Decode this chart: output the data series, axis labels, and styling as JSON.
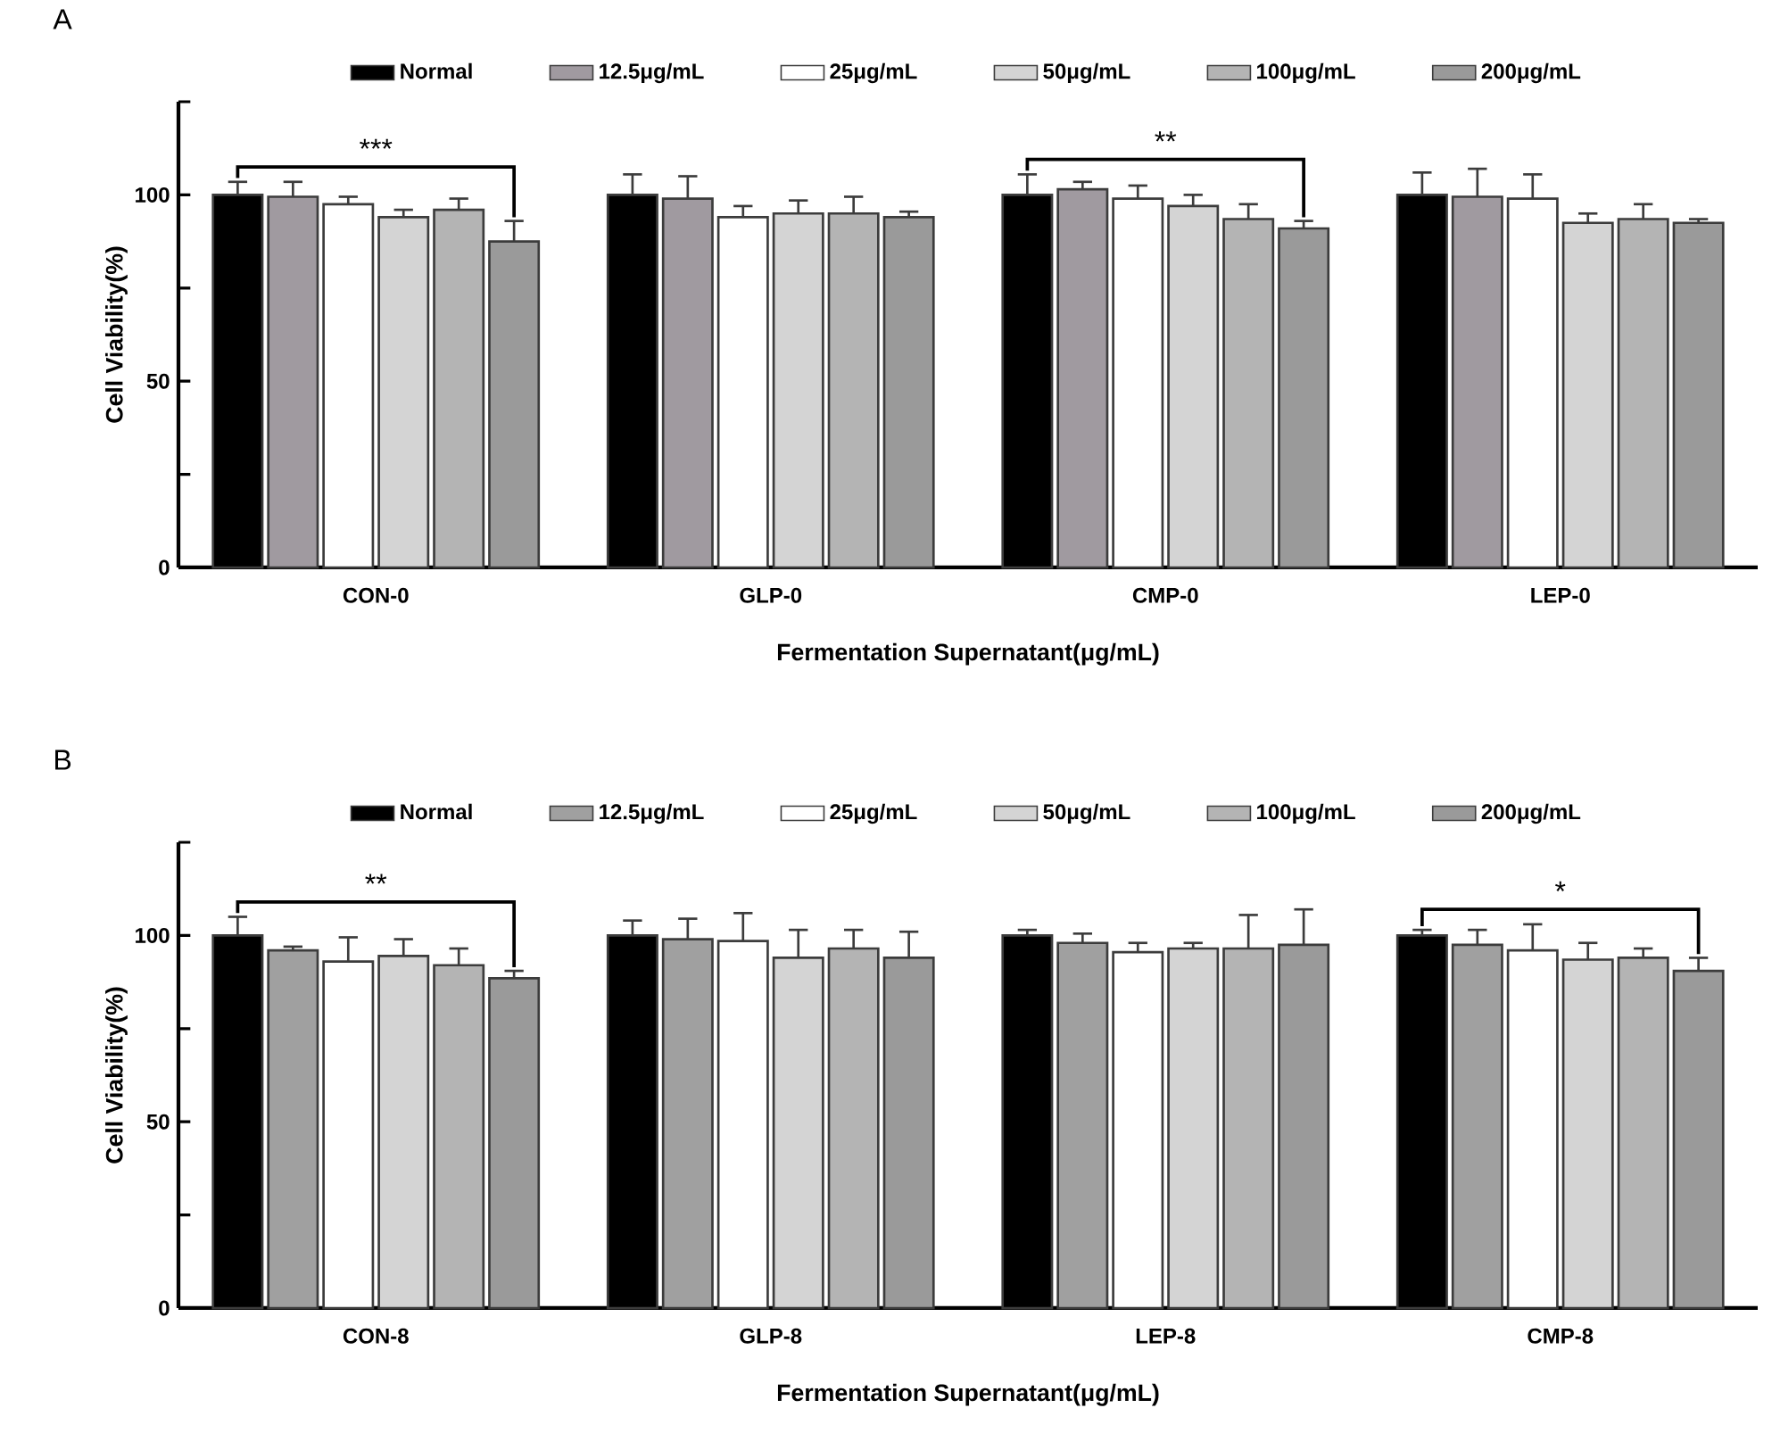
{
  "chart_data": [
    {
      "type": "bar",
      "title": "A",
      "xlabel": "Fermentation Supernatant(μg/mL)",
      "ylabel": "Cell Viability(%)",
      "categories": [
        "CON-0",
        "GLP-0",
        "CMP-0",
        "LEP-0"
      ],
      "ylim": [
        0,
        125
      ],
      "yticks": [
        0,
        {
          "value": 25,
          "label": null
        },
        50,
        {
          "value": 75,
          "label": null
        },
        100,
        {
          "value": 125,
          "label": null
        }
      ],
      "legend": "top",
      "grid": false,
      "series": [
        {
          "name": "Normal",
          "color": "#000000",
          "values": [
            100,
            100,
            100,
            100
          ],
          "errors": [
            3.5,
            5.5,
            5.5,
            6
          ]
        },
        {
          "name": "12.5μg/mL",
          "color": "#a09aa0",
          "values": [
            99.5,
            99,
            101.5,
            99.5
          ],
          "errors": [
            4,
            6,
            2,
            7.5
          ]
        },
        {
          "name": "25μg/mL",
          "color": "#ffffff",
          "values": [
            97.5,
            94,
            99,
            99
          ],
          "errors": [
            2,
            3,
            3.5,
            6.5
          ]
        },
        {
          "name": "50μg/mL",
          "color": "#d4d4d4",
          "values": [
            94,
            95,
            97,
            92.5
          ],
          "errors": [
            2,
            3.5,
            3,
            2.5
          ]
        },
        {
          "name": "100μg/mL",
          "color": "#b4b4b4",
          "values": [
            96,
            95,
            93.5,
            93.5
          ],
          "errors": [
            3,
            4.5,
            4,
            4
          ]
        },
        {
          "name": "200μg/mL",
          "color": "#9a9a9a",
          "values": [
            87.5,
            94,
            91,
            92.5
          ],
          "errors": [
            5.5,
            1.5,
            2,
            1
          ]
        }
      ],
      "annotations": [
        "***",
        "**"
      ]
    },
    {
      "type": "bar",
      "title": "B",
      "xlabel": "Fermentation Supernatant(μg/mL)",
      "ylabel": "Cell Viability(%)",
      "categories": [
        "CON-8",
        "GLP-8",
        "LEP-8",
        "CMP-8"
      ],
      "ylim": [
        0,
        125
      ],
      "yticks": [
        0,
        {
          "value": 25,
          "label": null
        },
        50,
        {
          "value": 75,
          "label": null
        },
        100,
        {
          "value": 125,
          "label": null
        }
      ],
      "legend": "top",
      "grid": false,
      "series": [
        {
          "name": "Normal",
          "color": "#000000",
          "values": [
            100,
            100,
            100,
            100
          ],
          "errors": [
            5,
            4,
            1.5,
            1.5
          ]
        },
        {
          "name": "12.5μg/mL",
          "color": "#a0a0a0",
          "values": [
            96,
            99,
            98,
            97.5
          ],
          "errors": [
            1,
            5.5,
            2.5,
            4
          ]
        },
        {
          "name": "25μg/mL",
          "color": "#ffffff",
          "values": [
            93,
            98.5,
            95.5,
            96
          ],
          "errors": [
            6.5,
            7.5,
            2.5,
            7
          ]
        },
        {
          "name": "50μg/mL",
          "color": "#d4d4d4",
          "values": [
            94.5,
            94,
            96.5,
            93.5
          ],
          "errors": [
            4.5,
            7.5,
            1.5,
            4.5
          ]
        },
        {
          "name": "100μg/mL",
          "color": "#b4b4b4",
          "values": [
            92,
            96.5,
            96.5,
            94
          ],
          "errors": [
            4.5,
            5,
            9,
            2.5
          ]
        },
        {
          "name": "200μg/mL",
          "color": "#9a9a9a",
          "values": [
            88.5,
            94,
            97.5,
            90.5
          ],
          "errors": [
            2,
            7,
            9.5,
            3.5
          ]
        }
      ],
      "annotations": [
        "**",
        "*"
      ]
    }
  ]
}
